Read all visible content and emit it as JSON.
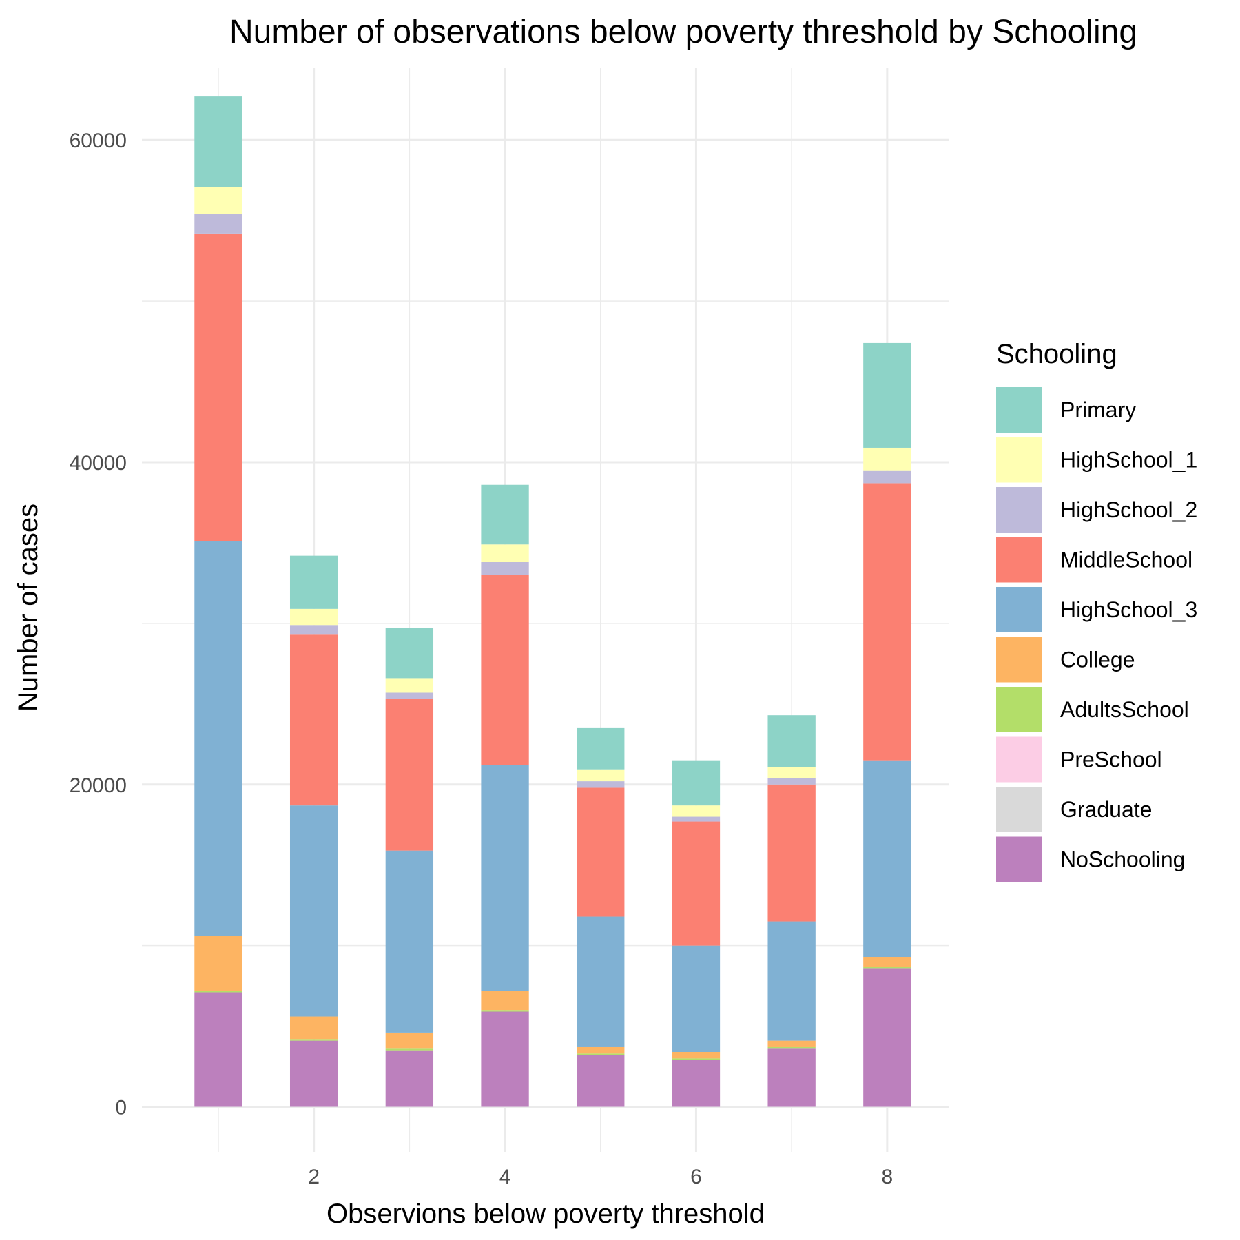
{
  "chart_data": {
    "type": "bar",
    "stacked": true,
    "title": "Number of observations below poverty threshold by Schooling",
    "xlabel": "Observions below poverty threshold",
    "ylabel": "Number of cases",
    "x": [
      1,
      2,
      3,
      4,
      5,
      6,
      7,
      8
    ],
    "xticks": [
      2,
      4,
      6,
      8
    ],
    "xlim": [
      0.2,
      8.65
    ],
    "yticks": [
      0,
      20000,
      40000,
      60000
    ],
    "ylim": [
      -2800,
      64500
    ],
    "grid": true,
    "legend": {
      "title": "Schooling",
      "position": "right"
    },
    "series": [
      {
        "name": "NoSchooling",
        "color": "#BC80BD",
        "values": [
          7100,
          4100,
          3500,
          5900,
          3200,
          2900,
          3600,
          8600
        ]
      },
      {
        "name": "Graduate",
        "color": "#D9D9D9",
        "values": [
          0,
          0,
          0,
          0,
          0,
          0,
          0,
          0
        ]
      },
      {
        "name": "PreSchool",
        "color": "#FCCDE5",
        "values": [
          0,
          0,
          0,
          0,
          0,
          0,
          0,
          0
        ]
      },
      {
        "name": "AdultsSchool",
        "color": "#B3DE69",
        "values": [
          100,
          100,
          100,
          100,
          100,
          100,
          100,
          100
        ]
      },
      {
        "name": "College",
        "color": "#FDB462",
        "values": [
          3400,
          1400,
          1000,
          1200,
          400,
          400,
          400,
          600
        ]
      },
      {
        "name": "HighSchool_3",
        "color": "#80B1D3",
        "values": [
          24500,
          13100,
          11300,
          14000,
          8100,
          6600,
          7400,
          12200
        ]
      },
      {
        "name": "MiddleSchool",
        "color": "#FB8072",
        "values": [
          19100,
          10600,
          9400,
          11800,
          8000,
          7700,
          8500,
          17200
        ]
      },
      {
        "name": "HighSchool_2",
        "color": "#BEBADA",
        "values": [
          1200,
          600,
          400,
          800,
          400,
          300,
          400,
          800
        ]
      },
      {
        "name": "HighSchool_1",
        "color": "#FFFFB3",
        "values": [
          1700,
          1000,
          900,
          1100,
          700,
          700,
          700,
          1400
        ]
      },
      {
        "name": "Primary",
        "color": "#8DD3C7",
        "values": [
          5600,
          3300,
          3100,
          3700,
          2600,
          2800,
          3200,
          6500
        ]
      }
    ],
    "legend_order": [
      "Primary",
      "HighSchool_1",
      "HighSchool_2",
      "MiddleSchool",
      "HighSchool_3",
      "College",
      "AdultsSchool",
      "PreSchool",
      "Graduate",
      "NoSchooling"
    ]
  }
}
